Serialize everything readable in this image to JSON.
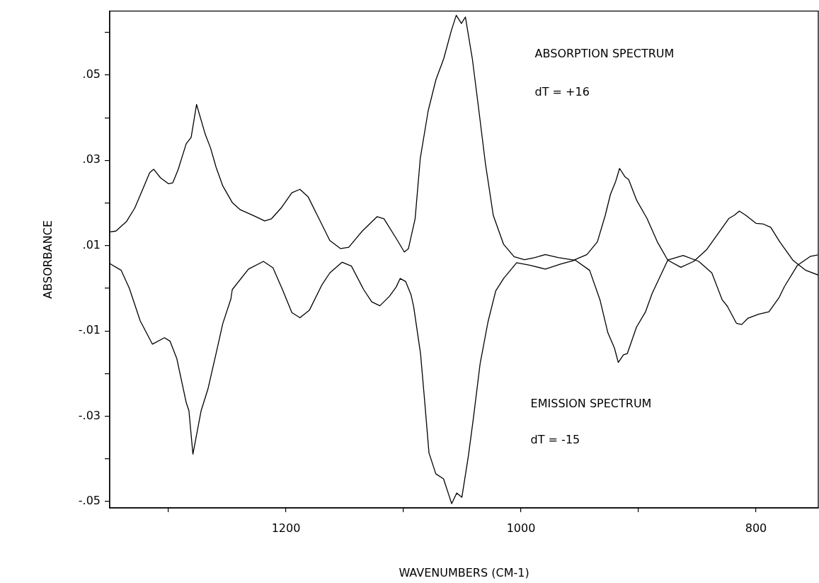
{
  "chart_data": {
    "type": "line",
    "xlabel": "WAVENUMBERS (CM-1)",
    "ylabel": "ABSORBANCE",
    "xlim": [
      1350,
      747
    ],
    "ylim": [
      -0.0515,
      0.065
    ],
    "xticks": [
      {
        "value": 1300,
        "label": null
      },
      1200,
      {
        "value": 1100,
        "label": null
      },
      1000,
      {
        "value": 900,
        "label": null
      },
      800
    ],
    "yticks": [
      {
        "value": 0.06,
        "label": null
      },
      {
        "value": 0.05,
        "label": ".05"
      },
      {
        "value": 0.04,
        "label": null
      },
      {
        "value": 0.03,
        "label": ".03"
      },
      {
        "value": 0.02,
        "label": null
      },
      {
        "value": 0.01,
        "label": ".01"
      },
      {
        "value": 0,
        "label": null
      },
      {
        "value": -0.01,
        "label": "-.01"
      },
      {
        "value": -0.02,
        "label": null
      },
      {
        "value": -0.03,
        "label": "-.03"
      },
      {
        "value": -0.04,
        "label": null
      },
      {
        "value": -0.05,
        "label": "-.05"
      }
    ],
    "grid": false,
    "legend": false,
    "marker": "none",
    "line_style": "solid",
    "annotations": [
      "ABSORPTION SPECTRUM",
      "dT = +16",
      "EMISSION SPECTRUM",
      "dT = -15"
    ],
    "series": [
      {
        "color": "#000000",
        "x": [
          1350,
          1344.8,
          1335.6,
          1328.7,
          1321.8,
          1316,
          1312.6,
          1306.8,
          1299.9,
          1296.4,
          1291.8,
          1284.9,
          1280.7,
          1276.1,
          1268.7,
          1264.2,
          1259.5,
          1253.8,
          1245.7,
          1238.8,
          1227.3,
          1218.1,
          1212.3,
          1204.2,
          1195,
          1188.1,
          1181.1,
          1171.9,
          1162.7,
          1153.5,
          1146.6,
          1135.1,
          1122.4,
          1116.6,
          1105.1,
          1099.3,
          1095.8,
          1090.1,
          1085.7,
          1079,
          1072.4,
          1065.8,
          1059.1,
          1055.1,
          1050.7,
          1047.3,
          1041.4,
          1035.8,
          1030.3,
          1023.6,
          1014.8,
          1005.9,
          997.1,
          988.2,
          979.3,
          968.2,
          954.9,
          943.9,
          935,
          928.3,
          923.9,
          919.5,
          916.1,
          911.7,
          908.4,
          901.7,
          892.8,
          884,
          875.1,
          864,
          853,
          841.9,
          830.8,
          823,
          818.6,
          814.2,
          808.6,
          799.8,
          794.2,
          787.5,
          779.8,
          768.7,
          757.6,
          747
        ],
        "values": [
          0.0132,
          0.0134,
          0.0157,
          0.0188,
          0.0233,
          0.0271,
          0.0279,
          0.0259,
          0.0245,
          0.0247,
          0.0278,
          0.0339,
          0.0354,
          0.0431,
          0.0361,
          0.0329,
          0.0284,
          0.024,
          0.0201,
          0.0184,
          0.017,
          0.0158,
          0.0163,
          0.0188,
          0.0224,
          0.0232,
          0.0214,
          0.0163,
          0.0112,
          0.0093,
          0.0096,
          0.0134,
          0.0168,
          0.0163,
          0.0112,
          0.0085,
          0.0093,
          0.0163,
          0.0305,
          0.0416,
          0.0489,
          0.0538,
          0.0606,
          0.064,
          0.0621,
          0.0636,
          0.0538,
          0.0416,
          0.0293,
          0.0171,
          0.0103,
          0.0074,
          0.0067,
          0.0072,
          0.0079,
          0.0072,
          0.0066,
          0.0079,
          0.0109,
          0.0171,
          0.022,
          0.025,
          0.0281,
          0.0262,
          0.0255,
          0.0207,
          0.0164,
          0.0109,
          0.0066,
          0.0049,
          0.0063,
          0.0091,
          0.0134,
          0.0164,
          0.0171,
          0.0181,
          0.0171,
          0.0152,
          0.0151,
          0.0143,
          0.0109,
          0.0066,
          0.0042,
          0.0031
        ]
      },
      {
        "color": "#000000",
        "x": [
          1350,
          1340.2,
          1333.3,
          1324.1,
          1313.7,
          1303.4,
          1298.7,
          1292.9,
          1284.9,
          1282.6,
          1279.2,
          1272.2,
          1266.4,
          1259.5,
          1253.8,
          1246.9,
          1245.7,
          1231.9,
          1219.2,
          1211.1,
          1203,
          1195,
          1188.1,
          1180,
          1169.6,
          1162.7,
          1152.3,
          1144.3,
          1133.9,
          1127,
          1120.1,
          1112,
          1106.2,
          1102.8,
          1098.2,
          1093.6,
          1091.3,
          1085.5,
          1082.5,
          1078.3,
          1072.5,
          1065.9,
          1061.5,
          1059,
          1054.7,
          1050.3,
          1044.7,
          1040.3,
          1034.8,
          1028.1,
          1021.5,
          1014.8,
          1003.7,
          992.6,
          979.3,
          966,
          953.8,
          941.6,
          932.8,
          926.1,
          920.5,
          917.2,
          912.8,
          909.5,
          901.7,
          894,
          888.4,
          875.1,
          862,
          848.7,
          837.6,
          828.8,
          824.4,
          816.7,
          812.2,
          806.7,
          797.9,
          789,
          780.2,
          775.8,
          764.7,
          753.6,
          747.4
        ],
        "values": [
          0.0058,
          0.0042,
          0,
          -0.0076,
          -0.0131,
          -0.0116,
          -0.0124,
          -0.0165,
          -0.0268,
          -0.0287,
          -0.0389,
          -0.0287,
          -0.0236,
          -0.0153,
          -0.0083,
          -0.0025,
          -0.0003,
          0.0045,
          0.0063,
          0.0048,
          -0.0003,
          -0.0057,
          -0.0069,
          -0.0051,
          0.0007,
          0.0036,
          0.0061,
          0.0052,
          -0.0003,
          -0.0032,
          -0.0041,
          -0.0019,
          0.0003,
          0.0023,
          0.0016,
          -0.0015,
          -0.0044,
          -0.0153,
          -0.0248,
          -0.0386,
          -0.0435,
          -0.0447,
          -0.0484,
          -0.0505,
          -0.048,
          -0.049,
          -0.0392,
          -0.03,
          -0.0177,
          -0.0079,
          -0.0006,
          0.0023,
          0.006,
          0.0054,
          0.0045,
          0.0057,
          0.0066,
          0.0042,
          -0.0027,
          -0.0104,
          -0.014,
          -0.0174,
          -0.0156,
          -0.0153,
          -0.0091,
          -0.0055,
          -0.0012,
          0.0066,
          0.0077,
          0.0063,
          0.0036,
          -0.0027,
          -0.0042,
          -0.0082,
          -0.0085,
          -0.007,
          -0.0061,
          -0.0055,
          -0.0021,
          0.0004,
          0.0054,
          0.0075,
          0.0078
        ]
      }
    ]
  }
}
